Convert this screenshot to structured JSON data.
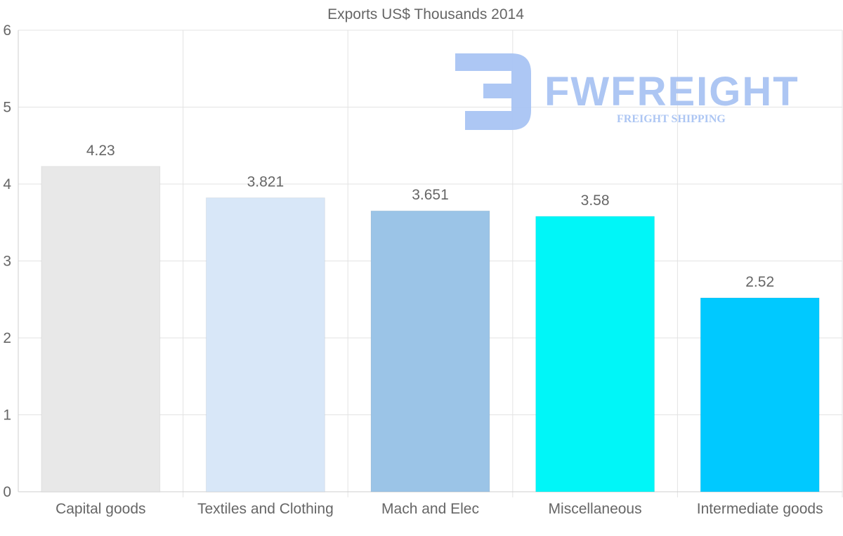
{
  "chart_data": {
    "type": "bar",
    "title": "Exports US$ Thousands 2014",
    "categories": [
      "Capital goods",
      "Textiles and Clothing",
      "Mach and Elec",
      "Miscellaneous",
      "Intermediate goods"
    ],
    "values": [
      4.23,
      3.821,
      3.651,
      3.58,
      2.52
    ],
    "value_labels": [
      "4.23",
      "3.821",
      "3.651",
      "3.58",
      "2.52"
    ],
    "colors": [
      "#e8e8e8",
      "#d8e7f8",
      "#9bc4e7",
      "#00f6f8",
      "#00c9ff"
    ],
    "xlabel": "",
    "ylabel": "",
    "ylim": [
      0,
      6
    ],
    "yticks": [
      0,
      1,
      2,
      3,
      4,
      5,
      6
    ],
    "grid": true
  },
  "watermark": {
    "brand": "FWFREIGHT",
    "tagline": "FREIGHT SHIPPING"
  }
}
